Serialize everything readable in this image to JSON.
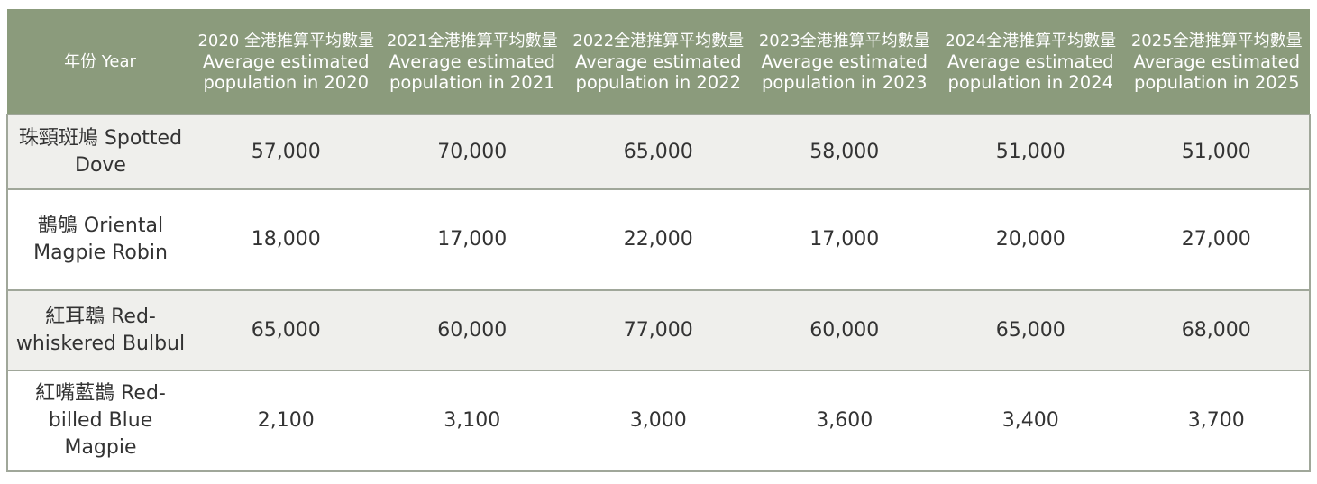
{
  "table": {
    "header": {
      "year_label": "年份 Year",
      "columns": [
        {
          "zh": "2020 全港推算平均數量",
          "en": "Average estimated population in 2020"
        },
        {
          "zh": "2021全港推算平均數量",
          "en": "Average estimated population in 2021"
        },
        {
          "zh": "2022全港推算平均數量",
          "en": "Average estimated population in 2022"
        },
        {
          "zh": "2023全港推算平均數量",
          "en": "Average estimated population in 2023"
        },
        {
          "zh": "2024全港推算平均數量",
          "en": "Average estimated population in 2024"
        },
        {
          "zh": "2025全港推算平均數量",
          "en": "Average estimated population in 2025"
        }
      ]
    },
    "rows": [
      {
        "species": "珠頸斑鳩 Spotted Dove",
        "values": [
          "57,000",
          "70,000",
          "65,000",
          "58,000",
          "51,000",
          "51,000"
        ]
      },
      {
        "species": "鵲鴝 Oriental Magpie Robin",
        "values": [
          "18,000",
          "17,000",
          "22,000",
          "17,000",
          "20,000",
          "27,000"
        ]
      },
      {
        "species": "紅耳鵯 Red-whiskered Bulbul",
        "values": [
          "65,000",
          "60,000",
          "77,000",
          "60,000",
          "65,000",
          "68,000"
        ]
      },
      {
        "species": "紅嘴藍鵲 Red-billed Blue Magpie",
        "values": [
          "2,100",
          "3,100",
          "3,000",
          "3,600",
          "3,400",
          "3,700"
        ]
      }
    ]
  },
  "colors": {
    "header_bg": "#8b9b7c",
    "stripe_bg": "#efefec",
    "border": "#a0a79a"
  }
}
